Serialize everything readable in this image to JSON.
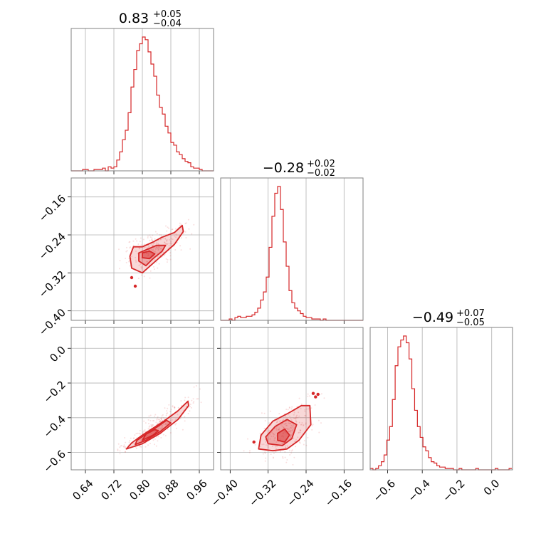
{
  "colors": {
    "accent": "#d62728",
    "grid": "#b0b0b0",
    "frame": "#808080",
    "background": "#ffffff"
  },
  "chart_data": {
    "type": "corner",
    "grid": true,
    "parameters": [
      {
        "title_value": "0.83",
        "title_plus": "+0.05",
        "title_minus": "−0.04",
        "range": [
          0.6,
          1.0
        ],
        "ticks": [
          0.64,
          0.72,
          0.8,
          0.88,
          0.96
        ],
        "tick_labels": [
          "0.64",
          "0.72",
          "0.80",
          "0.88",
          "0.96"
        ],
        "histogram": {
          "x": [
            0.6,
            0.608,
            0.616,
            0.624,
            0.632,
            0.64,
            0.648,
            0.656,
            0.664,
            0.672,
            0.68,
            0.688,
            0.696,
            0.704,
            0.712,
            0.72,
            0.728,
            0.736,
            0.744,
            0.752,
            0.76,
            0.768,
            0.776,
            0.784,
            0.792,
            0.8,
            0.808,
            0.816,
            0.824,
            0.832,
            0.84,
            0.848,
            0.856,
            0.864,
            0.872,
            0.88,
            0.888,
            0.896,
            0.904,
            0.912,
            0.92,
            0.928,
            0.936,
            0.944,
            0.952,
            0.96,
            0.968,
            0.976,
            0.984,
            0.992
          ],
          "values": [
            0,
            0,
            0,
            0,
            1,
            1,
            0,
            0,
            1,
            1,
            1,
            2,
            0,
            3,
            2,
            3,
            8,
            14,
            23,
            30,
            43,
            62,
            75,
            89,
            94,
            99,
            97,
            88,
            79,
            70,
            56,
            47,
            42,
            33,
            28,
            21,
            19,
            14,
            12,
            9,
            7,
            6,
            3,
            2,
            2,
            1,
            0,
            0,
            0,
            0
          ]
        }
      },
      {
        "title_value": "−0.28",
        "title_plus": "+0.02",
        "title_minus": "−0.02",
        "range": [
          -0.42,
          -0.12
        ],
        "ticks": [
          -0.4,
          -0.32,
          -0.24,
          -0.16
        ],
        "tick_labels": [
          "−0.40",
          "−0.32",
          "−0.24",
          "−0.16"
        ],
        "histogram": {
          "x": [
            -0.42,
            -0.414,
            -0.408,
            -0.402,
            -0.396,
            -0.39,
            -0.384,
            -0.378,
            -0.372,
            -0.366,
            -0.36,
            -0.354,
            -0.348,
            -0.342,
            -0.336,
            -0.33,
            -0.324,
            -0.318,
            -0.312,
            -0.306,
            -0.3,
            -0.294,
            -0.288,
            -0.282,
            -0.276,
            -0.27,
            -0.264,
            -0.258,
            -0.252,
            -0.246,
            -0.24,
            -0.234,
            -0.228,
            -0.222,
            -0.216,
            -0.21,
            -0.204,
            -0.198,
            -0.192,
            -0.186,
            -0.18,
            -0.174,
            -0.168,
            -0.162,
            -0.156,
            -0.15,
            -0.144,
            -0.138,
            -0.132,
            -0.126
          ],
          "values": [
            0,
            0,
            0,
            1,
            0,
            2,
            3,
            2,
            2,
            3,
            3,
            4,
            6,
            9,
            15,
            21,
            32,
            54,
            77,
            94,
            99,
            82,
            58,
            40,
            22,
            13,
            9,
            7,
            5,
            3,
            2,
            2,
            1,
            1,
            1,
            0,
            1,
            0,
            0,
            0,
            0,
            0,
            0,
            0,
            0,
            0,
            0,
            0,
            0,
            0
          ]
        }
      },
      {
        "title_value": "−0.49",
        "title_plus": "+0.07",
        "title_minus": "−0.05",
        "range": [
          -0.7,
          0.12
        ],
        "ticks": [
          -0.6,
          -0.4,
          -0.2,
          0.0
        ],
        "tick_labels": [
          "−0.6",
          "−0.4",
          "−0.2",
          "0.0"
        ],
        "histogram": {
          "x": [
            -0.7,
            -0.684,
            -0.668,
            -0.652,
            -0.636,
            -0.62,
            -0.604,
            -0.588,
            -0.572,
            -0.556,
            -0.54,
            -0.524,
            -0.508,
            -0.492,
            -0.476,
            -0.46,
            -0.444,
            -0.428,
            -0.412,
            -0.396,
            -0.38,
            -0.364,
            -0.348,
            -0.332,
            -0.316,
            -0.3,
            -0.284,
            -0.268,
            -0.252,
            -0.236,
            -0.22,
            -0.204,
            -0.188,
            -0.172,
            -0.156,
            -0.14,
            -0.124,
            -0.108,
            -0.092,
            -0.076,
            -0.06,
            -0.044,
            -0.028,
            -0.012,
            0.004,
            0.02,
            0.036,
            0.052,
            0.068,
            0.084,
            0.1
          ],
          "values": [
            1,
            0,
            1,
            3,
            6,
            11,
            22,
            32,
            52,
            77,
            91,
            96,
            99,
            94,
            82,
            60,
            44,
            32,
            24,
            17,
            14,
            9,
            6,
            5,
            3,
            2,
            2,
            1,
            1,
            1,
            0,
            0,
            1,
            0,
            0,
            0,
            0,
            0,
            1,
            0,
            0,
            0,
            0,
            0,
            0,
            1,
            0,
            0,
            0,
            0,
            1
          ]
        }
      }
    ],
    "pairs": [
      {
        "x_param": 0,
        "y_param": 1,
        "contours": [
          {
            "level": "outer",
            "points": [
              [
                0.77,
                -0.31
              ],
              [
                0.8,
                -0.32
              ],
              [
                0.83,
                -0.3
              ],
              [
                0.86,
                -0.28
              ],
              [
                0.89,
                -0.26
              ],
              [
                0.915,
                -0.233
              ],
              [
                0.912,
                -0.22
              ],
              [
                0.89,
                -0.235
              ],
              [
                0.855,
                -0.245
              ],
              [
                0.83,
                -0.255
              ],
              [
                0.8,
                -0.265
              ],
              [
                0.775,
                -0.265
              ],
              [
                0.765,
                -0.285
              ]
            ]
          },
          {
            "level": "middle",
            "points": [
              [
                0.79,
                -0.295
              ],
              [
                0.81,
                -0.305
              ],
              [
                0.83,
                -0.29
              ],
              [
                0.855,
                -0.275
              ],
              [
                0.865,
                -0.262
              ],
              [
                0.84,
                -0.262
              ],
              [
                0.815,
                -0.27
              ],
              [
                0.79,
                -0.278
              ]
            ]
          },
          {
            "level": "inner",
            "points": [
              [
                0.8,
                -0.288
              ],
              [
                0.82,
                -0.29
              ],
              [
                0.835,
                -0.28
              ],
              [
                0.82,
                -0.274
              ],
              [
                0.8,
                -0.278
              ]
            ]
          }
        ],
        "outliers": [
          [
            0.77,
            -0.33
          ],
          [
            0.78,
            -0.348
          ]
        ]
      },
      {
        "x_param": 0,
        "y_param": 2,
        "contours": [
          {
            "level": "outer",
            "points": [
              [
                0.755,
                -0.58
              ],
              [
                0.8,
                -0.55
              ],
              [
                0.85,
                -0.49
              ],
              [
                0.9,
                -0.41
              ],
              [
                0.93,
                -0.33
              ],
              [
                0.928,
                -0.305
              ],
              [
                0.9,
                -0.36
              ],
              [
                0.86,
                -0.42
              ],
              [
                0.83,
                -0.46
              ],
              [
                0.8,
                -0.5
              ],
              [
                0.77,
                -0.545
              ]
            ]
          },
          {
            "level": "middle",
            "points": [
              [
                0.78,
                -0.555
              ],
              [
                0.81,
                -0.53
              ],
              [
                0.85,
                -0.48
              ],
              [
                0.88,
                -0.43
              ],
              [
                0.868,
                -0.415
              ],
              [
                0.84,
                -0.455
              ],
              [
                0.81,
                -0.495
              ],
              [
                0.785,
                -0.53
              ]
            ]
          },
          {
            "level": "inner",
            "points": [
              [
                0.8,
                -0.53
              ],
              [
                0.83,
                -0.5
              ],
              [
                0.845,
                -0.475
              ],
              [
                0.835,
                -0.468
              ],
              [
                0.81,
                -0.495
              ]
            ]
          }
        ],
        "outliers": []
      },
      {
        "x_param": 1,
        "y_param": 2,
        "contours": [
          {
            "level": "outer",
            "points": [
              [
                -0.34,
                -0.58
              ],
              [
                -0.31,
                -0.59
              ],
              [
                -0.28,
                -0.58
              ],
              [
                -0.255,
                -0.53
              ],
              [
                -0.23,
                -0.44
              ],
              [
                -0.232,
                -0.33
              ],
              [
                -0.25,
                -0.33
              ],
              [
                -0.275,
                -0.37
              ],
              [
                -0.31,
                -0.42
              ],
              [
                -0.335,
                -0.5
              ]
            ]
          },
          {
            "level": "middle",
            "points": [
              [
                -0.32,
                -0.55
              ],
              [
                -0.29,
                -0.56
              ],
              [
                -0.27,
                -0.52
              ],
              [
                -0.26,
                -0.44
              ],
              [
                -0.28,
                -0.41
              ],
              [
                -0.305,
                -0.45
              ],
              [
                -0.325,
                -0.51
              ]
            ]
          },
          {
            "level": "inner",
            "points": [
              [
                -0.3,
                -0.53
              ],
              [
                -0.285,
                -0.54
              ],
              [
                -0.275,
                -0.5
              ],
              [
                -0.285,
                -0.465
              ],
              [
                -0.3,
                -0.49
              ]
            ]
          }
        ],
        "outliers": [
          [
            -0.22,
            -0.28
          ],
          [
            -0.225,
            -0.26
          ],
          [
            -0.215,
            -0.265
          ],
          [
            -0.35,
            -0.54
          ]
        ]
      }
    ]
  }
}
